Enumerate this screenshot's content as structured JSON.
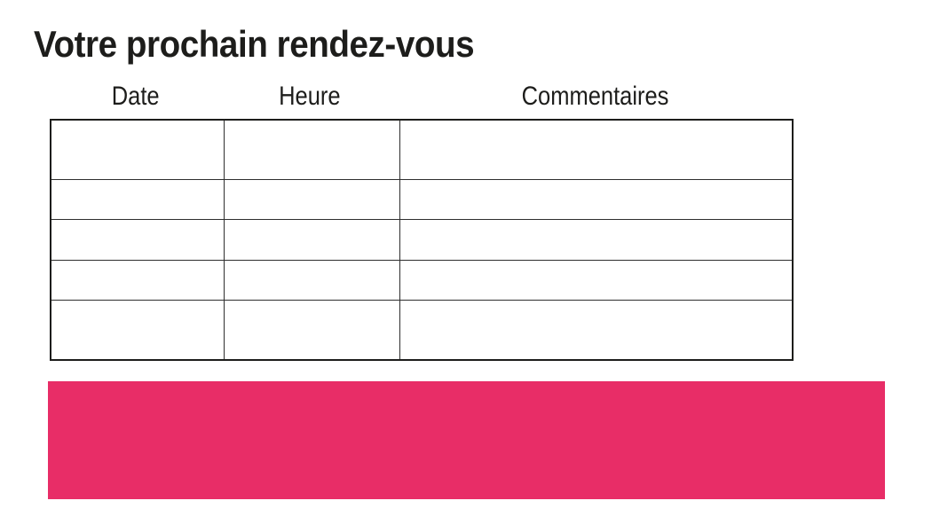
{
  "page": {
    "title": "Votre prochain rendez-vous"
  },
  "table": {
    "headers": [
      {
        "label": "Date"
      },
      {
        "label": "Heure"
      },
      {
        "label": "Commentaires"
      }
    ],
    "row_count": 5,
    "column_count": 3,
    "cells": [
      [
        "",
        "",
        ""
      ],
      [
        "",
        "",
        ""
      ],
      [
        "",
        "",
        ""
      ],
      [
        "",
        "",
        ""
      ],
      [
        "",
        "",
        ""
      ]
    ]
  },
  "colors": {
    "accent_pink": "#E82D67",
    "text": "#1D1D1B",
    "table_border": "#2E2E2E"
  }
}
